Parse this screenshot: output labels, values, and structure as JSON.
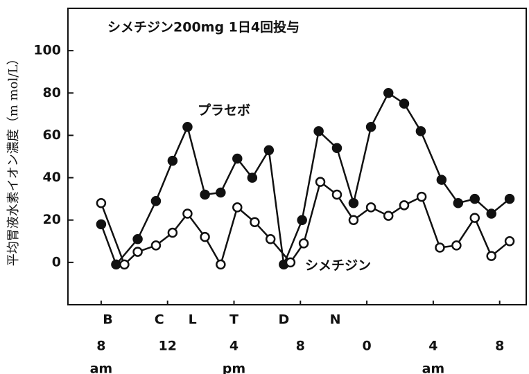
{
  "chart_data": {
    "type": "line",
    "title": "シメチジン200mg 1日4回投与",
    "y_label": "平均胃液水素イオン濃度（m mol/L）",
    "annotations": [
      "プラセボ",
      "シメチジン"
    ],
    "xlim": [
      6,
      33.6
    ],
    "ylim": [
      -20,
      120
    ],
    "yticks": [
      0,
      20,
      40,
      60,
      80,
      100
    ],
    "xticks": [
      {
        "value": 8,
        "label": "8"
      },
      {
        "value": 12,
        "label": "12"
      },
      {
        "value": 16,
        "label": "4"
      },
      {
        "value": 20,
        "label": "8"
      },
      {
        "value": 24,
        "label": "0"
      },
      {
        "value": 28,
        "label": "4"
      },
      {
        "value": 32,
        "label": "8"
      }
    ],
    "period_labels": [
      {
        "x": 8,
        "label": "am"
      },
      {
        "x": 16,
        "label": "pm"
      },
      {
        "x": 28,
        "label": "am"
      }
    ],
    "meal_labels": [
      {
        "x": 8.4,
        "label": "B"
      },
      {
        "x": 11.5,
        "label": "C"
      },
      {
        "x": 13.5,
        "label": "L"
      },
      {
        "x": 16,
        "label": "T"
      },
      {
        "x": 19,
        "label": "D"
      },
      {
        "x": 22.1,
        "label": "N"
      }
    ],
    "series": [
      {
        "name": "プラセボ",
        "color": "#111111",
        "marker": "filled",
        "x": [
          8.0,
          8.9,
          10.2,
          11.3,
          12.3,
          13.2,
          14.25,
          15.2,
          16.2,
          17.1,
          18.1,
          19.0,
          20.1,
          21.1,
          22.2,
          23.2,
          24.25,
          25.3,
          26.25,
          27.25,
          28.5,
          29.5,
          30.5,
          31.5,
          32.6
        ],
        "values": [
          18,
          -1,
          11,
          29,
          48,
          64,
          32,
          33,
          49,
          40,
          53,
          -1,
          20,
          62,
          54,
          28,
          64,
          80,
          75,
          62,
          39,
          28,
          30,
          23,
          30
        ]
      },
      {
        "name": "シメチジン",
        "color": "#111111",
        "marker": "open",
        "x": [
          8.0,
          9.4,
          10.2,
          11.3,
          12.3,
          13.2,
          14.25,
          15.2,
          16.2,
          17.25,
          18.2,
          19.4,
          20.2,
          21.2,
          22.2,
          23.2,
          24.25,
          25.3,
          26.25,
          27.3,
          28.4,
          29.4,
          30.5,
          31.5,
          32.6
        ],
        "values": [
          28,
          -1,
          5,
          8,
          14,
          23,
          12,
          -1,
          26,
          19,
          11,
          0,
          9,
          38,
          32,
          20,
          26,
          22,
          27,
          31,
          7,
          8,
          21,
          3,
          10
        ]
      }
    ]
  }
}
